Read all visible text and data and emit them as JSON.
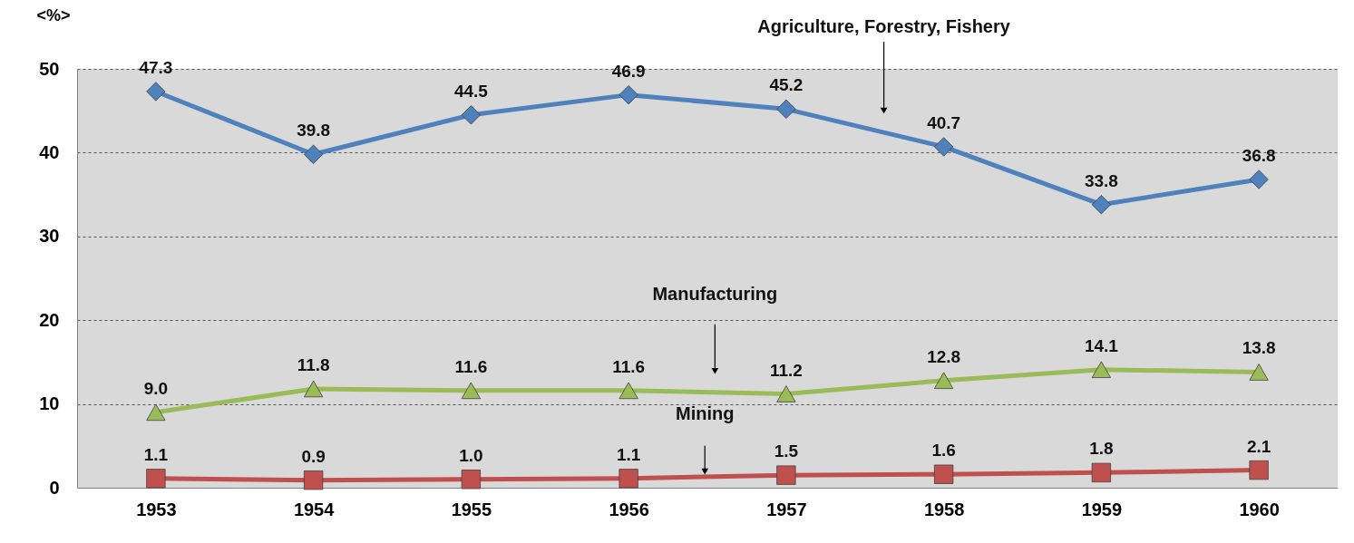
{
  "chart_data": {
    "type": "line",
    "ylabel": "<%>",
    "categories": [
      "1953",
      "1954",
      "1955",
      "1956",
      "1957",
      "1958",
      "1959",
      "1960"
    ],
    "series": [
      {
        "name": "Agriculture, Forestry, Fishery",
        "color": "#4f81bd",
        "marker": "diamond",
        "values": [
          47.3,
          39.8,
          44.5,
          46.9,
          45.2,
          40.7,
          33.8,
          36.8
        ],
        "value_labels": [
          "47.3",
          "39.8",
          "44.5",
          "46.9",
          "45.2",
          "40.7",
          "33.8",
          "36.8"
        ]
      },
      {
        "name": "Manufacturing",
        "color": "#9bbb59",
        "marker": "triangle",
        "values": [
          9.0,
          11.8,
          11.6,
          11.6,
          11.2,
          12.8,
          14.1,
          13.8
        ],
        "value_labels": [
          "9.0",
          "11.8",
          "11.6",
          "11.6",
          "11.2",
          "12.8",
          "14.1",
          "13.8"
        ]
      },
      {
        "name": "Mining",
        "color": "#c0504d",
        "marker": "square",
        "values": [
          1.1,
          0.9,
          1.0,
          1.1,
          1.5,
          1.6,
          1.8,
          2.1
        ],
        "value_labels": [
          "1.1",
          "0.9",
          "1.0",
          "1.1",
          "1.5",
          "1.6",
          "1.8",
          "2.1"
        ]
      }
    ],
    "ylim": [
      0,
      50
    ],
    "yticks": [
      0,
      10,
      20,
      30,
      40,
      50
    ],
    "grid": "y"
  }
}
